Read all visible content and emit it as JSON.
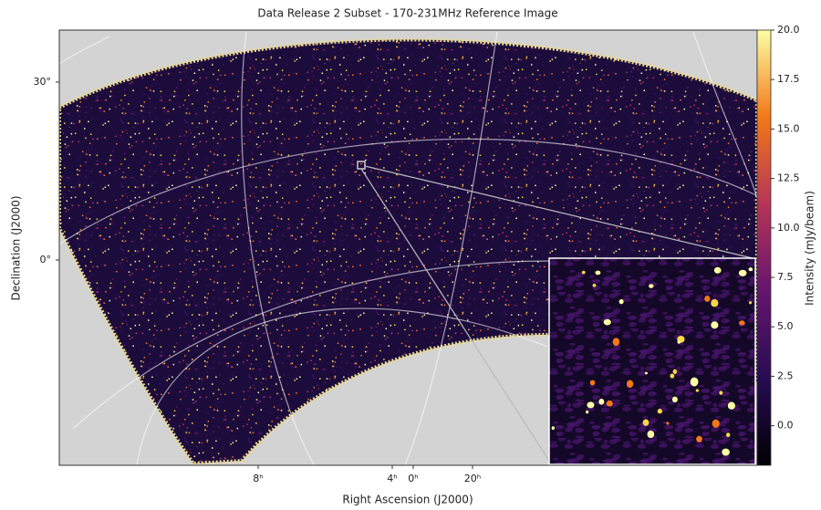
{
  "chart_data": {
    "type": "image",
    "title": "Data Release 2 Subset - 170-231MHz Reference Image",
    "x_label": "Right Ascension (J2000)",
    "y_label": "Declination (J2000)",
    "xticks": [
      {
        "value": 8,
        "label": "8ʰ"
      },
      {
        "value": 4,
        "label": "4ʰ"
      },
      {
        "value": 0,
        "label": "0ʰ"
      },
      {
        "value": 20,
        "label": "20ʰ"
      }
    ],
    "yticks": [
      {
        "value": 30,
        "label": "30°"
      },
      {
        "value": 0,
        "label": "0°"
      }
    ],
    "colorbar": {
      "label": "Intensity (mJy/beam)",
      "colormap": "inferno",
      "clim": [
        -2,
        20
      ],
      "ticks": [
        {
          "value": 0,
          "label": "0.0"
        },
        {
          "value": 2.5,
          "label": "2.5"
        },
        {
          "value": 5,
          "label": "5.0"
        },
        {
          "value": 7.5,
          "label": "7.5"
        },
        {
          "value": 10,
          "label": "10.0"
        },
        {
          "value": 12.5,
          "label": "12.5"
        },
        {
          "value": 15,
          "label": "15.0"
        },
        {
          "value": 17.5,
          "label": "17.5"
        },
        {
          "value": 20,
          "label": "20.0"
        }
      ]
    }
  }
}
